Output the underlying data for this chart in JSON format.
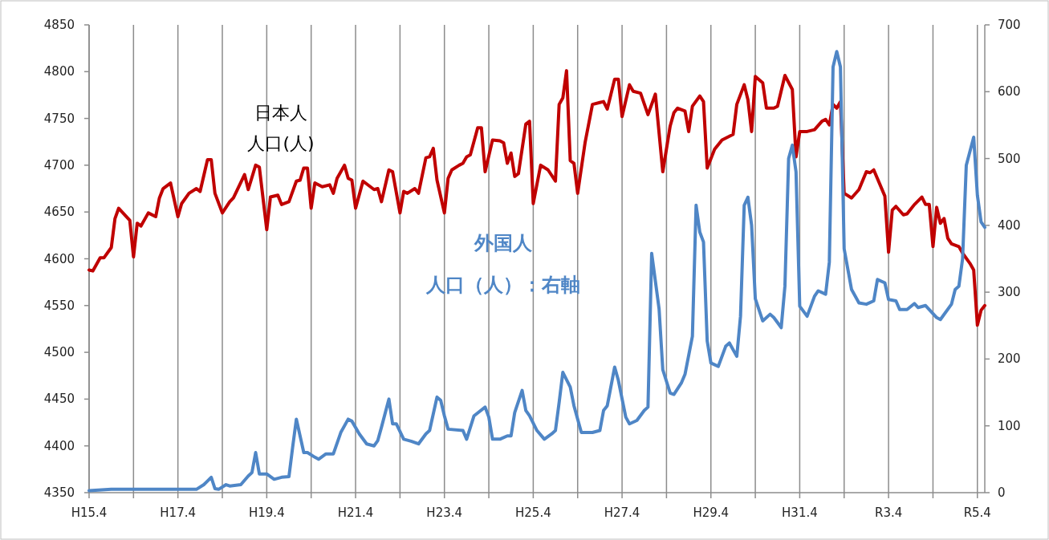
{
  "chart_data": {
    "type": "line",
    "xlim": [
      "2003-04",
      "2023-06"
    ],
    "xticks": [
      {
        "value": "2003-04",
        "label": "H15.4"
      },
      {
        "value": "2004-04",
        "label": null
      },
      {
        "value": "2005-04",
        "label": "H17.4"
      },
      {
        "value": "2006-04",
        "label": null
      },
      {
        "value": "2007-04",
        "label": "H19.4"
      },
      {
        "value": "2008-04",
        "label": null
      },
      {
        "value": "2009-04",
        "label": "H21.4"
      },
      {
        "value": "2010-04",
        "label": null
      },
      {
        "value": "2011-04",
        "label": "H23.4"
      },
      {
        "value": "2012-04",
        "label": null
      },
      {
        "value": "2013-04",
        "label": "H25.4"
      },
      {
        "value": "2014-04",
        "label": null
      },
      {
        "value": "2015-04",
        "label": "H27.4"
      },
      {
        "value": "2016-04",
        "label": null
      },
      {
        "value": "2017-04",
        "label": "H29.4"
      },
      {
        "value": "2018-04",
        "label": null
      },
      {
        "value": "2019-04",
        "label": "H31.4"
      },
      {
        "value": "2020-04",
        "label": null
      },
      {
        "value": "2021-04",
        "label": "R3.4"
      },
      {
        "value": "2022-04",
        "label": null
      },
      {
        "value": "2023-04",
        "label": "R5.4"
      }
    ],
    "ylim": [
      4350,
      4850
    ],
    "yticks": [
      4350,
      4400,
      4450,
      4500,
      4550,
      4600,
      4650,
      4700,
      4750,
      4800,
      4850
    ],
    "y2lim": [
      0,
      700
    ],
    "y2ticks": [
      0,
      100,
      200,
      300,
      400,
      500,
      600,
      700
    ],
    "grid": "x",
    "series": [
      {
        "name": "日本人人口(人)",
        "color": "#c00000",
        "x": [
          "2003-04",
          "2003-05",
          "2003-07",
          "2003-08",
          "2003-10",
          "2003-11",
          "2003-12",
          "2004-03",
          "2004-04",
          "2004-05",
          "2004-06",
          "2004-08",
          "2004-10",
          "2004-11",
          "2004-12",
          "2005-02",
          "2005-04",
          "2005-05",
          "2005-07",
          "2005-09",
          "2005-10",
          "2005-12",
          "2006-01",
          "2006-02",
          "2006-04",
          "2006-06",
          "2006-07",
          "2006-10",
          "2006-11",
          "2007-01",
          "2007-02",
          "2007-04",
          "2007-05",
          "2007-07",
          "2007-08",
          "2007-10",
          "2007-12",
          "2008-01",
          "2008-02",
          "2008-03",
          "2008-04",
          "2008-05",
          "2008-07",
          "2008-09",
          "2008-10",
          "2008-11",
          "2009-01",
          "2009-02",
          "2009-03",
          "2009-04",
          "2009-06",
          "2009-09",
          "2009-10",
          "2009-11",
          "2010-01",
          "2010-02",
          "2010-04",
          "2010-05",
          "2010-06",
          "2010-08",
          "2010-09",
          "2010-11",
          "2010-12",
          "2011-01",
          "2011-02",
          "2011-04",
          "2011-05",
          "2011-06",
          "2011-08",
          "2011-09",
          "2011-10",
          "2011-11",
          "2012-01",
          "2012-02",
          "2012-03",
          "2012-05",
          "2012-07",
          "2012-08",
          "2012-09",
          "2012-10",
          "2012-11",
          "2012-12",
          "2013-02",
          "2013-03",
          "2013-04",
          "2013-06",
          "2013-08",
          "2013-10",
          "2013-11",
          "2013-12",
          "2014-01",
          "2014-02",
          "2014-03",
          "2014-04",
          "2014-06",
          "2014-08",
          "2014-10",
          "2014-11",
          "2014-12",
          "2015-02",
          "2015-03",
          "2015-04",
          "2015-06",
          "2015-07",
          "2015-09",
          "2015-11",
          "2016-01",
          "2016-03",
          "2016-05",
          "2016-06",
          "2016-07",
          "2016-09",
          "2016-10",
          "2016-11",
          "2017-01",
          "2017-02",
          "2017-03",
          "2017-05",
          "2017-07",
          "2017-10",
          "2017-11",
          "2018-01",
          "2018-02",
          "2018-03",
          "2018-04",
          "2018-06",
          "2018-07",
          "2018-09",
          "2018-10",
          "2018-12",
          "2019-02",
          "2019-03",
          "2019-04",
          "2019-06",
          "2019-08",
          "2019-10",
          "2019-11",
          "2019-12",
          "2020-01",
          "2020-02",
          "2020-03",
          "2020-04",
          "2020-06",
          "2020-08",
          "2020-10",
          "2020-11",
          "2020-12",
          "2021-03",
          "2021-04",
          "2021-05",
          "2021-06",
          "2021-08",
          "2021-09",
          "2021-11",
          "2022-01",
          "2022-02",
          "2022-03",
          "2022-04",
          "2022-05",
          "2022-06",
          "2022-07",
          "2022-08",
          "2022-09",
          "2022-11",
          "2022-12",
          "2023-02",
          "2023-03",
          "2023-04",
          "2023-05",
          "2023-06"
        ],
        "values": [
          4588,
          4587,
          4601,
          4601,
          4612,
          4643,
          4654,
          4641,
          4602,
          4638,
          4635,
          4649,
          4645,
          4665,
          4675,
          4681,
          4645,
          4659,
          4670,
          4675,
          4672,
          4706,
          4706,
          4670,
          4649,
          4661,
          4665,
          4690,
          4674,
          4700,
          4698,
          4631,
          4666,
          4668,
          4658,
          4661,
          4683,
          4684,
          4697,
          4697,
          4654,
          4681,
          4677,
          4679,
          4670,
          4686,
          4700,
          4686,
          4684,
          4654,
          4683,
          4674,
          4675,
          4661,
          4695,
          4693,
          4649,
          4672,
          4670,
          4675,
          4670,
          4708,
          4709,
          4718,
          4684,
          4649,
          4686,
          4695,
          4700,
          4702,
          4709,
          4711,
          4740,
          4740,
          4693,
          4727,
          4726,
          4724,
          4702,
          4713,
          4688,
          4691,
          4744,
          4747,
          4659,
          4700,
          4695,
          4683,
          4765,
          4772,
          4801,
          4705,
          4702,
          4670,
          4724,
          4765,
          4767,
          4768,
          4760,
          4792,
          4792,
          4752,
          4786,
          4779,
          4777,
          4754,
          4776,
          4693,
          4742,
          4756,
          4761,
          4758,
          4736,
          4763,
          4774,
          4768,
          4697,
          4717,
          4727,
          4733,
          4765,
          4786,
          4770,
          4736,
          4795,
          4788,
          4761,
          4761,
          4763,
          4796,
          4781,
          4709,
          4736,
          4736,
          4738,
          4747,
          4749,
          4743,
          4765,
          4761,
          4768,
          4670,
          4665,
          4674,
          4693,
          4692,
          4695,
          4667,
          4607,
          4652,
          4656,
          4647,
          4648,
          4658,
          4666,
          4658,
          4658,
          4613,
          4655,
          4638,
          4643,
          4622,
          4616,
          4613,
          4606,
          4595,
          4588,
          4529,
          4545,
          4550
        ]
      },
      {
        "name": "外国人人口（人）：右軸",
        "color": "#4f86c6",
        "axis": "y2",
        "x": [
          "2003-04",
          "2003-10",
          "2005-09",
          "2005-11",
          "2006-01",
          "2006-02",
          "2006-03",
          "2006-05",
          "2006-06",
          "2006-09",
          "2006-11",
          "2006-12",
          "2007-01",
          "2007-02",
          "2007-04",
          "2007-06",
          "2007-08",
          "2007-10",
          "2007-11",
          "2007-12",
          "2008-02",
          "2008-03",
          "2008-05",
          "2008-06",
          "2008-08",
          "2008-10",
          "2008-12",
          "2009-02",
          "2009-03",
          "2009-05",
          "2009-07",
          "2009-09",
          "2009-10",
          "2009-11",
          "2010-01",
          "2010-02",
          "2010-03",
          "2010-05",
          "2010-07",
          "2010-09",
          "2010-11",
          "2010-12",
          "2011-02",
          "2011-03",
          "2011-04",
          "2011-05",
          "2011-09",
          "2011-10",
          "2011-12",
          "2012-03",
          "2012-04",
          "2012-05",
          "2012-07",
          "2012-09",
          "2012-10",
          "2012-11",
          "2013-01",
          "2013-02",
          "2013-03",
          "2013-05",
          "2013-07",
          "2013-09",
          "2013-10",
          "2013-11",
          "2013-12",
          "2014-02",
          "2014-03",
          "2014-05",
          "2014-08",
          "2014-10",
          "2014-11",
          "2014-12",
          "2015-02",
          "2015-03",
          "2015-05",
          "2015-06",
          "2015-08",
          "2015-10",
          "2015-11",
          "2015-12",
          "2016-02",
          "2016-03",
          "2016-05",
          "2016-06",
          "2016-08",
          "2016-09",
          "2016-11",
          "2016-12",
          "2017-01",
          "2017-02",
          "2017-03",
          "2017-04",
          "2017-06",
          "2017-08",
          "2017-09",
          "2017-11",
          "2017-12",
          "2018-01",
          "2018-02",
          "2018-03",
          "2018-04",
          "2018-06",
          "2018-08",
          "2018-09",
          "2018-11",
          "2018-12",
          "2019-01",
          "2019-02",
          "2019-03",
          "2019-04",
          "2019-06",
          "2019-08",
          "2019-09",
          "2019-11",
          "2019-12",
          "2020-01",
          "2020-02",
          "2020-03",
          "2020-04",
          "2020-06",
          "2020-08",
          "2020-10",
          "2020-12",
          "2021-01",
          "2021-03",
          "2021-04",
          "2021-06",
          "2021-07",
          "2021-09",
          "2021-11",
          "2021-12",
          "2022-02",
          "2022-05",
          "2022-06",
          "2022-09",
          "2022-10",
          "2022-11",
          "2022-12",
          "2023-01",
          "2023-03",
          "2023-04",
          "2023-05",
          "2023-06"
        ],
        "values": [
          3,
          5,
          5,
          12,
          23,
          6,
          5,
          12,
          10,
          12,
          25,
          30,
          60,
          28,
          28,
          20,
          23,
          24,
          68,
          110,
          60,
          60,
          53,
          50,
          58,
          58,
          90,
          110,
          107,
          88,
          73,
          70,
          78,
          98,
          140,
          103,
          103,
          80,
          77,
          73,
          88,
          93,
          143,
          138,
          115,
          95,
          93,
          80,
          115,
          128,
          113,
          80,
          80,
          85,
          85,
          120,
          153,
          123,
          115,
          93,
          80,
          88,
          93,
          135,
          180,
          158,
          130,
          90,
          90,
          93,
          123,
          130,
          188,
          168,
          113,
          103,
          108,
          123,
          128,
          358,
          275,
          184,
          149,
          147,
          164,
          177,
          234,
          430,
          390,
          375,
          227,
          194,
          189,
          219,
          224,
          204,
          264,
          430,
          442,
          400,
          290,
          257,
          267,
          262,
          247,
          309,
          500,
          520,
          480,
          279,
          264,
          294,
          302,
          297,
          345,
          637,
          660,
          637,
          365,
          304,
          284,
          282,
          287,
          319,
          314,
          289,
          287,
          274,
          274,
          283,
          277,
          280,
          262,
          259,
          282,
          304,
          309,
          350,
          490,
          532,
          445,
          405,
          397
        ]
      }
    ]
  }
}
